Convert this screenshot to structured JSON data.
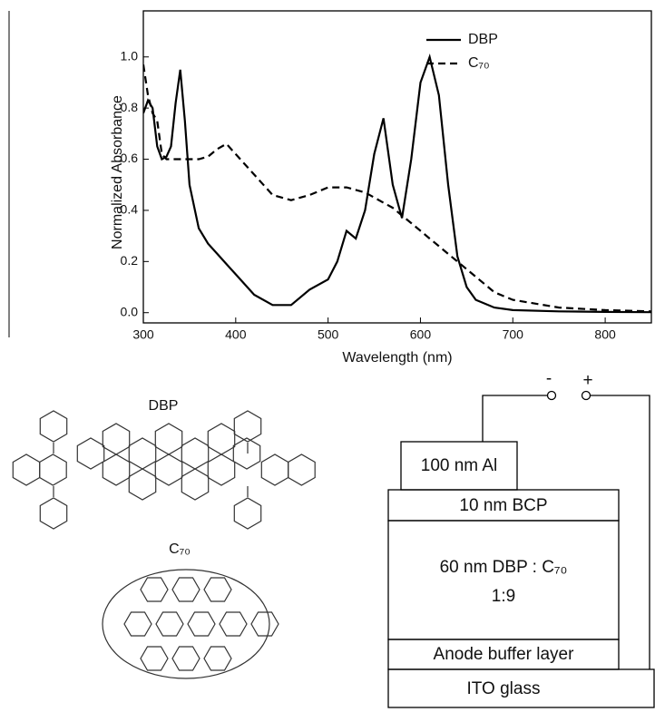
{
  "chart_data": {
    "type": "line",
    "x_label": "Wavelength (nm)",
    "y_label": "Normalized Absorbance",
    "x": [
      300,
      305,
      310,
      315,
      320,
      325,
      330,
      335,
      340,
      345,
      350,
      360,
      370,
      380,
      390,
      400,
      420,
      440,
      460,
      480,
      500,
      510,
      520,
      530,
      540,
      550,
      560,
      570,
      580,
      590,
      600,
      610,
      620,
      630,
      640,
      650,
      660,
      680,
      700,
      750,
      800,
      850
    ],
    "series": [
      {
        "name": "DBP",
        "color": "#000000",
        "dash": "solid",
        "values": [
          0.78,
          0.83,
          0.8,
          0.65,
          0.6,
          0.61,
          0.65,
          0.82,
          0.95,
          0.75,
          0.5,
          0.33,
          0.27,
          0.23,
          0.19,
          0.15,
          0.07,
          0.03,
          0.03,
          0.09,
          0.13,
          0.2,
          0.32,
          0.29,
          0.4,
          0.62,
          0.76,
          0.5,
          0.37,
          0.6,
          0.9,
          1.0,
          0.85,
          0.5,
          0.22,
          0.1,
          0.05,
          0.02,
          0.01,
          0.005,
          0.003,
          0.002
        ]
      },
      {
        "name": "C₇₀",
        "color": "#000000",
        "dash": "dashed",
        "values": [
          0.97,
          0.85,
          0.78,
          0.75,
          0.62,
          0.6,
          0.6,
          0.6,
          0.6,
          0.6,
          0.6,
          0.6,
          0.61,
          0.64,
          0.66,
          0.62,
          0.54,
          0.46,
          0.44,
          0.46,
          0.49,
          0.49,
          0.49,
          0.48,
          0.47,
          0.45,
          0.43,
          0.41,
          0.38,
          0.35,
          0.32,
          0.29,
          0.26,
          0.23,
          0.2,
          0.17,
          0.14,
          0.08,
          0.05,
          0.02,
          0.01,
          0.005
        ]
      }
    ],
    "xlim": [
      300,
      850
    ],
    "xticks": [
      300,
      400,
      500,
      600,
      700,
      800
    ],
    "ylim": [
      -0.04,
      1.18
    ],
    "yticks": [
      {
        "value": 0,
        "label": "0.0"
      },
      {
        "value": 0.2,
        "label": "0.2"
      },
      {
        "value": 0.4,
        "label": "0.4"
      },
      {
        "value": 0.6,
        "label": "0.6"
      },
      {
        "value": 0.8,
        "label": "0.8"
      },
      {
        "value": 1,
        "label": "1.0"
      }
    ],
    "legend": "upper right",
    "grid": false
  },
  "molecules": [
    "DBP",
    "C₇₀"
  ],
  "device": {
    "terminals": [
      "-",
      "+"
    ],
    "layers": [
      "100 nm Al",
      "10 nm BCP",
      "60 nm DBP : C₇₀",
      "1:9",
      "Anode buffer layer",
      "ITO glass"
    ]
  }
}
